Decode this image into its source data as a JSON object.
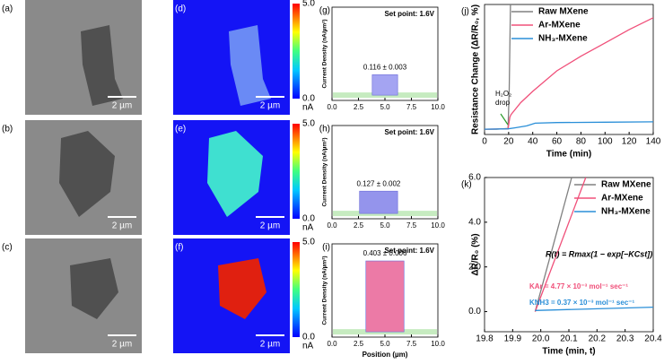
{
  "panels": [
    {
      "label": "(a)",
      "scale_bar": "2 µm"
    },
    {
      "label": "(b)",
      "scale_bar": "2 µm"
    },
    {
      "label": "(c)",
      "scale_bar": "2 µm"
    },
    {
      "label": "(d)",
      "scale_bar": "2 µm"
    },
    {
      "label": "(e)",
      "scale_bar": "2 µm"
    },
    {
      "label": "(f)",
      "scale_bar": "2 µm"
    }
  ],
  "colorbar": {
    "lim": [
      0,
      5
    ],
    "ticks": [
      {
        "value": 5,
        "label": "5.0"
      },
      {
        "value": 0,
        "label": "0.0"
      }
    ],
    "unit": "nA"
  },
  "chart_data": [
    {
      "type": "profile",
      "panel": "(g)",
      "subtitle": "Set point: 1.6V",
      "ylabel": "Current Density (nA/µm²)",
      "xlim": [
        0,
        10
      ],
      "xticks": [
        {
          "value": 0,
          "label": "0.0"
        },
        2.5,
        {
          "value": 5,
          "label": "5.0"
        },
        7.5,
        {
          "value": 10,
          "label": "10.0"
        }
      ],
      "ylim": [
        -0.03,
        0.5
      ],
      "segment": [
        3.8,
        6.2
      ],
      "value": 0.116,
      "value_label": "0.116 ± 0.003",
      "color": "#a4a4f2"
    },
    {
      "type": "profile",
      "panel": "(h)",
      "subtitle": "Set point: 1.6V",
      "ylabel": "Current Density (nA/µm²)",
      "xlim": [
        0,
        10
      ],
      "xticks": [
        {
          "value": 0,
          "label": "0.0"
        },
        2.5,
        {
          "value": 5,
          "label": "5.0"
        },
        7.5,
        {
          "value": 10,
          "label": "10.0"
        }
      ],
      "ylim": [
        -0.03,
        0.5
      ],
      "segment": [
        2.6,
        6.2
      ],
      "value": 0.127,
      "value_label": "0.127 ± 0.002",
      "color": "#9494ec"
    },
    {
      "type": "profile",
      "panel": "(i)",
      "subtitle": "Set point: 1.6V",
      "ylabel": "Current Density (nA/µm²)",
      "xlabel": "Position (µm)",
      "xlim": [
        0,
        10
      ],
      "xticks": [
        {
          "value": 0,
          "label": "0.0"
        },
        2.5,
        {
          "value": 5,
          "label": "5.0"
        },
        7.5,
        {
          "value": 10,
          "label": "10.0"
        }
      ],
      "ylim": [
        -0.03,
        0.5
      ],
      "segment": [
        3.2,
        6.8
      ],
      "value": 0.403,
      "value_label": "0.403 ± 0.006",
      "color": "#ec7aa6"
    },
    {
      "type": "line",
      "panel": "(j)",
      "xlabel": "Time (min)",
      "ylabel": "Resistance Change (ΔR/R₀, %)",
      "xlim": [
        0,
        140
      ],
      "xticks": [
        0,
        20,
        40,
        60,
        80,
        100,
        120,
        140
      ],
      "ylim": [
        -8,
        188
      ],
      "annotations": [
        {
          "text": "H₂O₂",
          "color": "#000000"
        },
        {
          "text": "drop",
          "color": "#000000"
        }
      ],
      "series": [
        {
          "name": "Raw MXene",
          "color": "#808080",
          "x": [
            0,
            10,
            19.5,
            20.5,
            21.5
          ],
          "values": [
            0,
            0,
            1,
            60,
            188
          ]
        },
        {
          "name": "Ar-MXene",
          "color": "#f0507a",
          "x": [
            0,
            19.5,
            21,
            22,
            30,
            40,
            60,
            80,
            100,
            120,
            140
          ],
          "values": [
            0,
            0.5,
            18,
            22,
            40,
            57,
            88,
            110,
            130,
            150,
            168
          ]
        },
        {
          "name": "NH₃-MXene",
          "color": "#2a8fd8",
          "x": [
            0,
            19.5,
            25,
            35,
            42,
            60,
            100,
            140
          ],
          "values": [
            0,
            0.5,
            2,
            5,
            9,
            10,
            10.5,
            11
          ]
        }
      ]
    },
    {
      "type": "line",
      "panel": "(k)",
      "xlabel": "Time (min, t)",
      "ylabel": "ΔR/R₀ (%)",
      "xlim": [
        19.8,
        20.4
      ],
      "xticks": [
        19.8,
        19.9,
        {
          "value": 20,
          "label": "20.0"
        },
        20.1,
        20.2,
        20.3,
        20.4
      ],
      "ylim": [
        -0.9,
        6
      ],
      "yticks": [
        {
          "value": 0,
          "label": "0.0"
        },
        {
          "value": 2,
          "label": "2.0"
        },
        {
          "value": 4,
          "label": "4.0"
        },
        {
          "value": 6,
          "label": "6.0"
        }
      ],
      "annotations": [
        {
          "text": "R(t) = Rmax(1 − exp[−KCst])",
          "color": "#000000"
        },
        {
          "text": "KAr = 4.77 × 10⁻³ mol⁻¹ sec⁻¹",
          "color": "#f0507a"
        },
        {
          "text": "KNH3 = 0.37 × 10⁻³ mol⁻¹ sec⁻¹",
          "color": "#2a8fd8"
        }
      ],
      "series": [
        {
          "name": "Raw MXene",
          "color": "#808080",
          "x": [
            19.98,
            20.11
          ],
          "values": [
            0,
            6
          ]
        },
        {
          "name": "Ar-MXene",
          "color": "#f0507a",
          "x": [
            19.98,
            20.16
          ],
          "values": [
            0,
            6
          ]
        },
        {
          "name": "NH₃-MXene",
          "color": "#2a8fd8",
          "x": [
            19.98,
            20.4
          ],
          "values": [
            0.05,
            0.2
          ]
        }
      ]
    }
  ]
}
